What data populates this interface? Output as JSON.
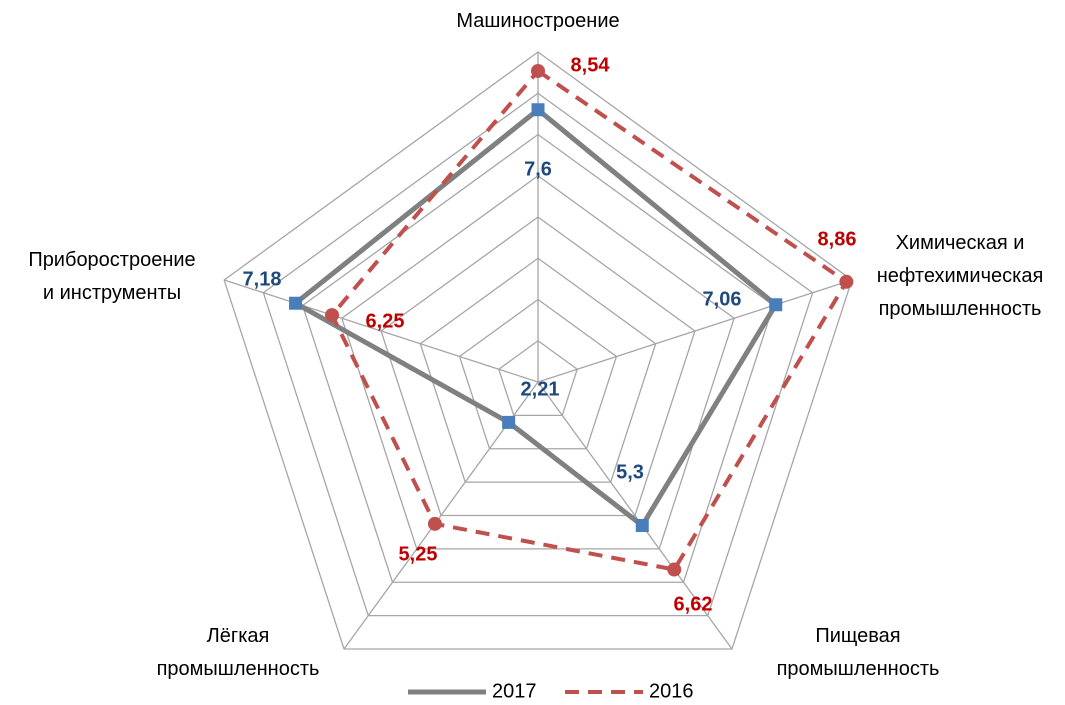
{
  "chart_data": {
    "type": "radar",
    "categories": [
      "Машиностроение",
      "Химическая и\nнефтехимическая\nпромышленность",
      "Пищевая\nпромышленность",
      "Лёгкая\nпромышленность",
      "Приборостроение\nи инструменты"
    ],
    "ylim": [
      1,
      9
    ],
    "yticks": [
      1,
      2,
      3,
      4,
      5,
      6,
      7,
      8,
      9
    ],
    "grid": true,
    "legend": "bottom",
    "series": [
      {
        "name": "2017",
        "color": "#808080",
        "marker_color": "#4a7ebb",
        "label_color": "#1f497d",
        "values": [
          7.6,
          7.06,
          5.3,
          2.21,
          7.18
        ],
        "value_labels": [
          "7,6",
          "7,06",
          "5,3",
          "2,21",
          "7,18"
        ]
      },
      {
        "name": "2016",
        "color": "#c0504d",
        "marker_color": "#c0504d",
        "label_color": "#c00000",
        "dashed": true,
        "values": [
          8.54,
          8.86,
          6.62,
          5.25,
          6.25
        ],
        "value_labels": [
          "8,54",
          "8,86",
          "6,62",
          "5,25",
          "6,25"
        ]
      }
    ]
  }
}
